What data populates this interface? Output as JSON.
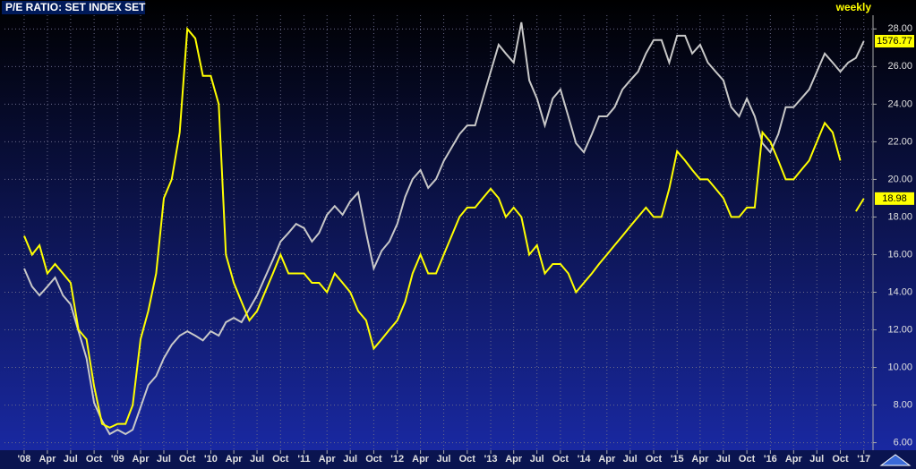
{
  "chart_data": {
    "type": "line",
    "title": "P/E RATIO: SET INDEX SET",
    "subtitle": "weekly",
    "x": [
      "2008-01",
      "2008-02",
      "2008-03",
      "2008-04",
      "2008-05",
      "2008-06",
      "2008-07",
      "2008-08",
      "2008-09",
      "2008-10",
      "2008-11",
      "2008-12",
      "2009-01",
      "2009-02",
      "2009-03",
      "2009-04",
      "2009-05",
      "2009-06",
      "2009-07",
      "2009-08",
      "2009-09",
      "2009-10",
      "2009-11",
      "2009-12",
      "2010-01",
      "2010-02",
      "2010-03",
      "2010-04",
      "2010-05",
      "2010-06",
      "2010-07",
      "2010-08",
      "2010-09",
      "2010-10",
      "2010-11",
      "2010-12",
      "2011-01",
      "2011-02",
      "2011-03",
      "2011-04",
      "2011-05",
      "2011-06",
      "2011-07",
      "2011-08",
      "2011-09",
      "2011-10",
      "2011-11",
      "2011-12",
      "2012-01",
      "2012-02",
      "2012-03",
      "2012-04",
      "2012-05",
      "2012-06",
      "2012-07",
      "2012-08",
      "2012-09",
      "2012-10",
      "2012-11",
      "2012-12",
      "2013-01",
      "2013-02",
      "2013-03",
      "2013-04",
      "2013-05",
      "2013-06",
      "2013-07",
      "2013-08",
      "2013-09",
      "2013-10",
      "2013-11",
      "2013-12",
      "2014-01",
      "2014-02",
      "2014-03",
      "2014-04",
      "2014-05",
      "2014-06",
      "2014-07",
      "2014-08",
      "2014-09",
      "2014-10",
      "2014-11",
      "2014-12",
      "2015-01",
      "2015-02",
      "2015-03",
      "2015-04",
      "2015-05",
      "2015-06",
      "2015-07",
      "2015-08",
      "2015-09",
      "2015-10",
      "2015-11",
      "2015-12",
      "2016-01",
      "2016-02",
      "2016-03",
      "2016-04",
      "2016-05",
      "2016-06",
      "2016-07",
      "2016-08",
      "2016-09",
      "2016-10",
      "2016-11",
      "2016-12",
      "2017-01"
    ],
    "series": [
      {
        "color": "#c8c8c8",
        "axis": "y2",
        "values": [
          900,
          846,
          820,
          846,
          873,
          820,
          793,
          713,
          633,
          500,
          447,
          407,
          420,
          407,
          420,
          487,
          553,
          580,
          633,
          673,
          700,
          713,
          700,
          686,
          713,
          700,
          740,
          753,
          740,
          780,
          820,
          873,
          926,
          980,
          1006,
          1033,
          1020,
          980,
          1006,
          1060,
          1086,
          1060,
          1100,
          1126,
          1006,
          900,
          953,
          980,
          1033,
          1113,
          1166,
          1193,
          1140,
          1166,
          1220,
          1260,
          1300,
          1326,
          1326,
          1406,
          1486,
          1566,
          1540,
          1513,
          1633,
          1460,
          1406,
          1326,
          1406,
          1433,
          1353,
          1273,
          1246,
          1300,
          1353,
          1353,
          1380,
          1433,
          1460,
          1486,
          1540,
          1580,
          1580,
          1513,
          1593,
          1593,
          1540,
          1566,
          1513,
          1486,
          1460,
          1380,
          1353,
          1406,
          1353,
          1273,
          1246,
          1300,
          1380,
          1380,
          1406,
          1433,
          1486,
          1540,
          1513,
          1486,
          1513,
          1527,
          1576.77
        ]
      },
      {
        "color": "#ffff00",
        "values": [
          17.0,
          16.0,
          16.5,
          15.0,
          15.5,
          15.0,
          14.5,
          12.0,
          11.5,
          9.0,
          7.0,
          6.8,
          7.0,
          7.0,
          8.0,
          11.5,
          13.0,
          15.0,
          19.0,
          20.0,
          22.5,
          28.0,
          27.5,
          25.5,
          25.5,
          24.0,
          16.0,
          14.5,
          13.5,
          12.5,
          13.0,
          14.0,
          15.0,
          16.0,
          15.0,
          15.0,
          15.0,
          14.5,
          14.5,
          14.0,
          15.0,
          14.5,
          14.0,
          13.0,
          12.5,
          11.0,
          11.5,
          12.0,
          12.5,
          13.5,
          15.0,
          16.0,
          15.0,
          15.0,
          16.0,
          17.0,
          18.0,
          18.5,
          18.5,
          19.0,
          19.5,
          19.0,
          18.0,
          18.5,
          18.0,
          16.0,
          16.5,
          15.0,
          15.5,
          15.5,
          15.0,
          14.0,
          14.5,
          15.0,
          15.5,
          16.0,
          16.5,
          17.0,
          17.5,
          18.0,
          18.5,
          18.0,
          18.0,
          19.5,
          21.5,
          21.0,
          20.5,
          20.0,
          20.0,
          19.5,
          19.0,
          18.0,
          18.0,
          18.5,
          18.5,
          22.5,
          22.0,
          21.0,
          20.0,
          20.0,
          20.5,
          21.0,
          22.0,
          23.0,
          22.5,
          21.0,
          null,
          18.3,
          18.98
        ]
      }
    ],
    "xlim": [
      "2007-10-16",
      "2017-02-06"
    ],
    "xticks": [
      {
        "value": "2008-01",
        "label": "'08"
      },
      {
        "value": "2008-04",
        "label": "Apr"
      },
      {
        "value": "2008-07",
        "label": "Jul"
      },
      {
        "value": "2008-10",
        "label": "Oct"
      },
      {
        "value": "2009-01",
        "label": "'09"
      },
      {
        "value": "2009-04",
        "label": "Apr"
      },
      {
        "value": "2009-07",
        "label": "Jul"
      },
      {
        "value": "2009-10",
        "label": "Oct"
      },
      {
        "value": "2010-01",
        "label": "'10"
      },
      {
        "value": "2010-04",
        "label": "Apr"
      },
      {
        "value": "2010-07",
        "label": "Jul"
      },
      {
        "value": "2010-10",
        "label": "Oct"
      },
      {
        "value": "2011-01",
        "label": "'11"
      },
      {
        "value": "2011-04",
        "label": "Apr"
      },
      {
        "value": "2011-07",
        "label": "Jul"
      },
      {
        "value": "2011-10",
        "label": "Oct"
      },
      {
        "value": "2012-01",
        "label": "'12"
      },
      {
        "value": "2012-04",
        "label": "Apr"
      },
      {
        "value": "2012-07",
        "label": "Jul"
      },
      {
        "value": "2012-10",
        "label": "Oct"
      },
      {
        "value": "2013-01",
        "label": "'13"
      },
      {
        "value": "2013-04",
        "label": "Apr"
      },
      {
        "value": "2013-07",
        "label": "Jul"
      },
      {
        "value": "2013-10",
        "label": "Oct"
      },
      {
        "value": "2014-01",
        "label": "'14"
      },
      {
        "value": "2014-04",
        "label": "Apr"
      },
      {
        "value": "2014-07",
        "label": "Jul"
      },
      {
        "value": "2014-10",
        "label": "Oct"
      },
      {
        "value": "2015-01",
        "label": "'15"
      },
      {
        "value": "2015-04",
        "label": "Apr"
      },
      {
        "value": "2015-07",
        "label": "Jul"
      },
      {
        "value": "2015-10",
        "label": "Oct"
      },
      {
        "value": "2016-01",
        "label": "'16"
      },
      {
        "value": "2016-04",
        "label": "Apr"
      },
      {
        "value": "2016-07",
        "label": "Jul"
      },
      {
        "value": "2016-10",
        "label": "Oct"
      },
      {
        "value": "2017-01",
        "label": "'17"
      }
    ],
    "ylim": [
      5.6,
      29.3
    ],
    "yticks": [
      {
        "value": 6,
        "label": "6.00"
      },
      {
        "value": 8,
        "label": "8.00"
      },
      {
        "value": 10,
        "label": "10.00"
      },
      {
        "value": 12,
        "label": "12.00"
      },
      {
        "value": 14,
        "label": "14.00"
      },
      {
        "value": 16,
        "label": "16.00"
      },
      {
        "value": 18,
        "label": "18.00"
      },
      {
        "value": 20,
        "label": "20.00"
      },
      {
        "value": 22,
        "label": "22.00"
      },
      {
        "value": 24,
        "label": "24.00"
      },
      {
        "value": 26,
        "label": "26.00"
      },
      {
        "value": 28,
        "label": "28.00"
      }
    ],
    "y2lim": [
      359,
      1686
    ],
    "grid": true
  }
}
